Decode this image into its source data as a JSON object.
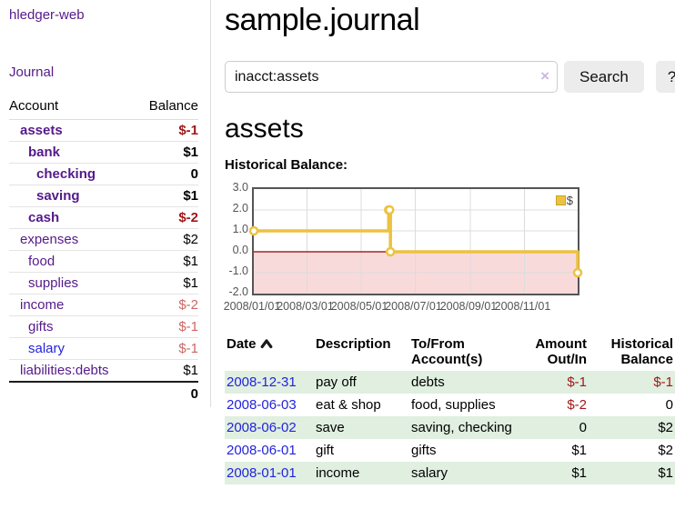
{
  "brand": "hledger-web",
  "nav": {
    "journal": "Journal"
  },
  "sidebar": {
    "header": {
      "account": "Account",
      "balance": "Balance"
    },
    "rows": [
      {
        "name": "assets",
        "balance": "$-1",
        "indent": 1,
        "bold": true,
        "bal_class": "neg-strong",
        "link": "purple"
      },
      {
        "name": "bank",
        "balance": "$1",
        "indent": 2,
        "bold": true,
        "bal_class": "",
        "link": "purple"
      },
      {
        "name": "checking",
        "balance": "0",
        "indent": 3,
        "bold": true,
        "bal_class": "",
        "link": "purple"
      },
      {
        "name": "saving",
        "balance": "$1",
        "indent": 3,
        "bold": true,
        "bal_class": "",
        "link": "purple"
      },
      {
        "name": "cash",
        "balance": "$-2",
        "indent": 2,
        "bold": true,
        "bal_class": "neg-strong",
        "link": "purple"
      },
      {
        "name": "expenses",
        "balance": "$2",
        "indent": 1,
        "bold": false,
        "bal_class": "",
        "link": "purple"
      },
      {
        "name": "food",
        "balance": "$1",
        "indent": 2,
        "bold": false,
        "bal_class": "",
        "link": "purple"
      },
      {
        "name": "supplies",
        "balance": "$1",
        "indent": 2,
        "bold": false,
        "bal_class": "",
        "link": "purple"
      },
      {
        "name": "income",
        "balance": "$-2",
        "indent": 1,
        "bold": false,
        "bal_class": "neg-soft",
        "link": "purple"
      },
      {
        "name": "gifts",
        "balance": "$-1",
        "indent": 2,
        "bold": false,
        "bal_class": "neg-soft",
        "link": "purple"
      },
      {
        "name": "salary",
        "balance": "$-1",
        "indent": 2,
        "bold": false,
        "bal_class": "neg-soft",
        "link": "blue"
      },
      {
        "name": "liabilities:debts",
        "balance": "$1",
        "indent": 1,
        "bold": false,
        "bal_class": "",
        "link": "purple"
      }
    ],
    "total": "0"
  },
  "main": {
    "title": "sample.journal",
    "search": {
      "value": "inacct:assets",
      "clear_icon": "×",
      "button": "Search",
      "help": "?"
    },
    "account_heading": "assets",
    "chart_label": "Historical Balance:"
  },
  "chart_data": {
    "type": "line",
    "title": "Historical Balance",
    "step": true,
    "series": [
      {
        "name": "$",
        "color": "#edc240",
        "points": [
          [
            "2008-01-01",
            1
          ],
          [
            "2008-06-01",
            2
          ],
          [
            "2008-06-02",
            2
          ],
          [
            "2008-06-03",
            0
          ],
          [
            "2008-12-31",
            -1
          ]
        ]
      }
    ],
    "x_range": [
      "2008-01-01",
      "2008-12-31"
    ],
    "x_ticks": [
      "2008/01/01",
      "2008/03/01",
      "2008/05/01",
      "2008/07/01",
      "2008/09/01",
      "2008/11/01"
    ],
    "y_ticks": [
      3.0,
      2.0,
      1.0,
      0.0,
      -1.0,
      -2.0
    ],
    "ylim": [
      -2,
      3
    ],
    "grid": true,
    "legend": {
      "label": "$",
      "position": "top-right"
    },
    "negative_region_color": "#f9dada",
    "zero_line_color": "#8b0000",
    "grid_color": "#dcdcdc",
    "marker_fill": "#ffffff"
  },
  "register": {
    "headers": {
      "date": "Date",
      "description": "Description",
      "accounts": "To/From Account(s)",
      "amount": "Amount Out/In",
      "balance": "Historical Balance"
    },
    "rows": [
      {
        "date": "2008-12-31",
        "description": "pay off",
        "accounts": "debts",
        "amount": "$-1",
        "balance": "$-1",
        "amount_neg": true,
        "balance_neg": true
      },
      {
        "date": "2008-06-03",
        "description": "eat & shop",
        "accounts": "food, supplies",
        "amount": "$-2",
        "balance": "0",
        "amount_neg": true,
        "balance_neg": false
      },
      {
        "date": "2008-06-02",
        "description": "save",
        "accounts": "saving, checking",
        "amount": "0",
        "balance": "$2",
        "amount_neg": false,
        "balance_neg": false
      },
      {
        "date": "2008-06-01",
        "description": "gift",
        "accounts": "gifts",
        "amount": "$1",
        "balance": "$2",
        "amount_neg": false,
        "balance_neg": false
      },
      {
        "date": "2008-01-01",
        "description": "income",
        "accounts": "salary",
        "amount": "$1",
        "balance": "$1",
        "amount_neg": false,
        "balance_neg": false
      }
    ]
  },
  "colors": {
    "link_purple": "#551a8b",
    "link_blue": "#2323dd",
    "neg_strong": "#a11818",
    "neg_soft": "#cc6666",
    "row_stripe": "#e0efe0",
    "button_bg": "#ececec",
    "chart_line": "#edc240"
  }
}
